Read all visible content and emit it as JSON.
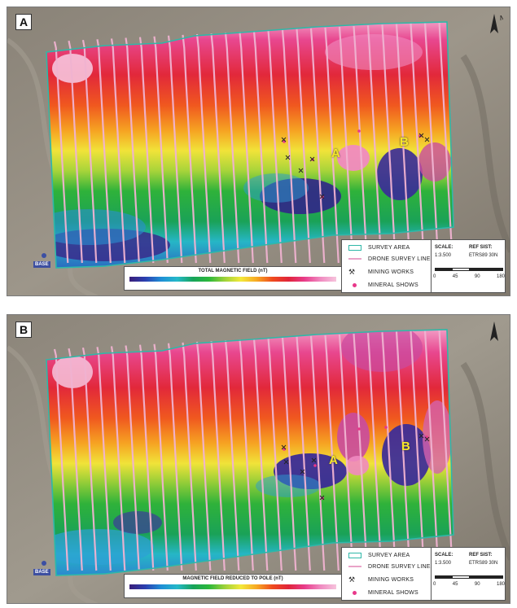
{
  "panel_a": {
    "letter": "A",
    "colorbar_title": "TOTAL MAGNETIC FIELD (nT)",
    "anomaly_labels": [
      "A",
      "B"
    ]
  },
  "panel_b": {
    "letter": "B",
    "colorbar_title": "MAGNETIC FIELD REDUCED TO POLE (nT)",
    "anomaly_labels": [
      "A",
      "B"
    ]
  },
  "north_label": "N",
  "base_label": "BASE",
  "legend": {
    "survey_area": "SURVEY AREA",
    "drone_survey_lines": "DRONE SURVEY LINES",
    "mining_works": "MINING WORKS",
    "mineral_shows": "MINERAL SHOWS"
  },
  "scale_box": {
    "scale_label": "SCALE:",
    "scale_value": "1:3.500",
    "ref_label": "REF SIST:",
    "ref_value": "ETRS89 30N",
    "ticks": [
      "0",
      "45",
      "90",
      "180"
    ]
  },
  "colors": {
    "survey_outline": "#2fb8a8",
    "survey_lines": "#e9a3c8",
    "mineral_show": "#e8388a",
    "anomaly_label": "#f6e52a"
  }
}
